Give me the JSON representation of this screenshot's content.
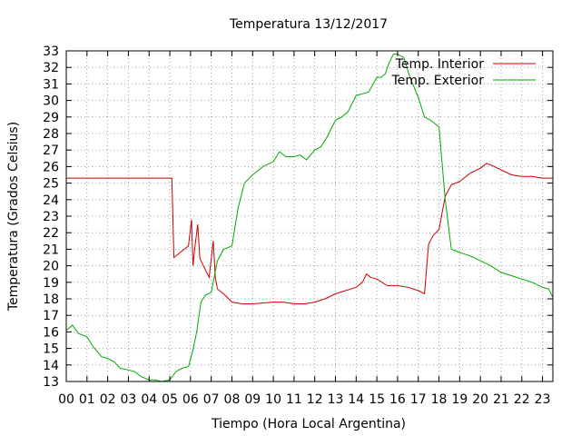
{
  "chart_data": {
    "type": "line",
    "title": "Temperatura 13/12/2017",
    "xlabel": "Tiempo (Hora Local Argentina)",
    "ylabel": "Temperatura (Grados Celsius)",
    "xlim": [
      0,
      23.5
    ],
    "ylim": [
      13,
      33
    ],
    "xticks": [
      "00",
      "01",
      "02",
      "03",
      "04",
      "05",
      "06",
      "07",
      "08",
      "09",
      "10",
      "11",
      "12",
      "13",
      "14",
      "15",
      "16",
      "17",
      "18",
      "19",
      "20",
      "21",
      "22",
      "23"
    ],
    "yticks": [
      13,
      14,
      15,
      16,
      17,
      18,
      19,
      20,
      21,
      22,
      23,
      24,
      25,
      26,
      27,
      28,
      29,
      30,
      31,
      32,
      33
    ],
    "grid": true,
    "legend": "top-right",
    "series": [
      {
        "name": "Temp. Interior",
        "color": "#cc0000",
        "x": [
          0,
          1,
          2,
          3,
          4,
          5.1,
          5.2,
          5.5,
          5.9,
          6.05,
          6.12,
          6.2,
          6.35,
          6.45,
          6.5,
          6.7,
          6.9,
          7.1,
          7.2,
          7.3,
          7.6,
          8,
          8.5,
          9,
          10,
          10.5,
          11,
          11.5,
          12,
          12.5,
          13,
          13.5,
          14,
          14.3,
          14.5,
          14.7,
          15,
          15.5,
          16,
          16.5,
          17,
          17.3,
          17.5,
          17.7,
          18,
          18.3,
          18.6,
          19,
          19.5,
          20,
          20.3,
          20.5,
          21,
          21.5,
          22,
          22.5,
          23,
          23.5
        ],
        "y": [
          25.3,
          25.3,
          25.3,
          25.3,
          25.3,
          25.3,
          20.5,
          20.8,
          21.2,
          22.8,
          20.0,
          21.0,
          22.5,
          20.5,
          20.3,
          19.8,
          19.3,
          21.5,
          19.3,
          18.6,
          18.3,
          17.8,
          17.7,
          17.7,
          17.8,
          17.8,
          17.7,
          17.7,
          17.8,
          18.0,
          18.3,
          18.5,
          18.7,
          19.0,
          19.5,
          19.3,
          19.2,
          18.8,
          18.8,
          18.7,
          18.5,
          18.3,
          21.3,
          21.8,
          22.2,
          24.2,
          24.9,
          25.1,
          25.6,
          25.9,
          26.2,
          26.1,
          25.8,
          25.5,
          25.4,
          25.4,
          25.3,
          25.3
        ]
      },
      {
        "name": "Temp. Exterior",
        "color": "#00aa00",
        "x": [
          0,
          0.3,
          0.6,
          1,
          1.3,
          1.7,
          2,
          2.3,
          2.6,
          3,
          3.3,
          3.6,
          4,
          4.3,
          4.6,
          5,
          5.3,
          5.6,
          5.9,
          6.1,
          6.3,
          6.5,
          6.7,
          7,
          7.3,
          7.6,
          8,
          8.3,
          8.6,
          9,
          9.5,
          10,
          10.3,
          10.6,
          11,
          11.3,
          11.6,
          12,
          12.3,
          12.6,
          13,
          13.3,
          13.6,
          14,
          14.3,
          14.6,
          15,
          15.2,
          15.4,
          15.6,
          15.8,
          16,
          16.3,
          16.6,
          17,
          17.3,
          17.6,
          18,
          18.3,
          18.6,
          19,
          19.5,
          20,
          20.5,
          21,
          21.5,
          22,
          22.5,
          23,
          23.3,
          23.5
        ],
        "y": [
          16.1,
          16.4,
          15.9,
          15.7,
          15.1,
          14.5,
          14.4,
          14.2,
          13.8,
          13.7,
          13.6,
          13.3,
          13.1,
          13.1,
          13.0,
          13.1,
          13.6,
          13.8,
          13.9,
          14.8,
          16.0,
          17.8,
          18.2,
          18.4,
          20.3,
          21.0,
          21.2,
          23.5,
          25.0,
          25.5,
          26.0,
          26.3,
          26.9,
          26.6,
          26.6,
          26.7,
          26.4,
          27.0,
          27.2,
          27.8,
          28.8,
          29.0,
          29.3,
          30.3,
          30.4,
          30.5,
          31.4,
          31.4,
          31.6,
          32.3,
          32.8,
          32.8,
          32.6,
          31.4,
          30.2,
          29.0,
          28.8,
          28.4,
          24.0,
          21.0,
          20.8,
          20.6,
          20.3,
          20.0,
          19.6,
          19.4,
          19.2,
          19.0,
          18.7,
          18.6,
          18.1
        ]
      }
    ]
  }
}
